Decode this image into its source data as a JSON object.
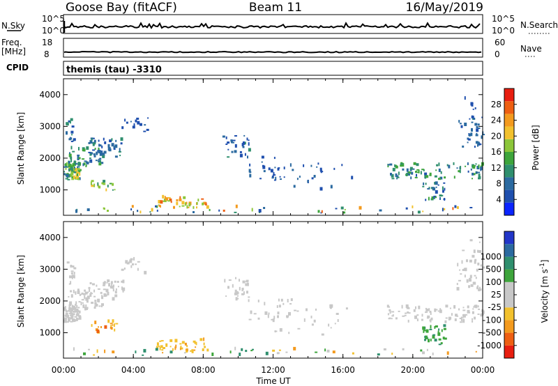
{
  "header": {
    "station": "Goose Bay (fitACF)",
    "beam": "Beam 11",
    "date": "16/May/2019"
  },
  "nsky_panel": {
    "left_label": "N.Sky",
    "left_top_tick": "10^5",
    "left_bottom_tick": "10^0",
    "right_label": "N.Search",
    "right_top_tick": "10^5",
    "right_bottom_tick": "10^0"
  },
  "freq_panel": {
    "left_label_1": "Freq.",
    "left_label_2": "[MHz]",
    "left_top_tick": "18",
    "left_bottom_tick": "8",
    "right_label": "Nave",
    "right_top_tick": "60",
    "right_bottom_tick": "0"
  },
  "cpid_panel": {
    "label": "CPID",
    "program": "themis (tau) -3310"
  },
  "colors": {
    "background": "#ffffff",
    "power_scale": [
      "#0a24ff",
      "#1f4fae",
      "#2b6aa0",
      "#2f8f6e",
      "#3ea53c",
      "#8cc63a",
      "#f2c12e",
      "#f39a1e",
      "#ee5f12",
      "#e81e10"
    ],
    "velocity_scale": [
      "#e81e10",
      "#ee5f12",
      "#f39a1e",
      "#f2c12e",
      "#c8c8c8",
      "#c8c8c8",
      "#3ea53c",
      "#2f8f6e",
      "#2b6aa0",
      "#2236c8"
    ]
  },
  "chart_data": [
    {
      "type": "heatmap",
      "xlabel": "Time UT",
      "ylabel": "Slant Range [km]",
      "x_ticks": [
        "00:00",
        "04:00",
        "08:00",
        "12:00",
        "16:00",
        "20:00",
        "00:00"
      ],
      "xlim": [
        0,
        24
      ],
      "y_ticks": [
        1000,
        2000,
        3000,
        4000
      ],
      "ylim": [
        200,
        4500
      ],
      "colorbar": {
        "label": "Power [dB]",
        "ticks": [
          4,
          8,
          12,
          16,
          20,
          24,
          28
        ],
        "range": [
          0,
          32
        ]
      },
      "scatter_regions": [
        {
          "t": [
            0.0,
            0.9
          ],
          "r": [
            1300,
            1800
          ],
          "v": [
            8,
            20
          ],
          "n": 70
        },
        {
          "t": [
            0.2,
            2.2
          ],
          "r": [
            1700,
            2300
          ],
          "v": [
            6,
            14
          ],
          "n": 55
        },
        {
          "t": [
            1.4,
            3.4
          ],
          "r": [
            2000,
            2600
          ],
          "v": [
            4,
            12
          ],
          "n": 40
        },
        {
          "t": [
            0.1,
            0.6
          ],
          "r": [
            2500,
            3200
          ],
          "v": [
            4,
            12
          ],
          "n": 15
        },
        {
          "t": [
            3.3,
            4.8
          ],
          "r": [
            2800,
            3300
          ],
          "v": [
            4,
            8
          ],
          "n": 14
        },
        {
          "t": [
            1.5,
            3.0
          ],
          "r": [
            950,
            1250
          ],
          "v": [
            10,
            20
          ],
          "n": 18
        },
        {
          "t": [
            5.3,
            8.2
          ],
          "r": [
            400,
            750
          ],
          "v": [
            16,
            28
          ],
          "n": 40
        },
        {
          "t": [
            9.1,
            10.6
          ],
          "r": [
            1950,
            2700
          ],
          "v": [
            4,
            10
          ],
          "n": 28
        },
        {
          "t": [
            10.5,
            13.2
          ],
          "r": [
            1300,
            2000
          ],
          "v": [
            4,
            8
          ],
          "n": 24
        },
        {
          "t": [
            12.0,
            16.5
          ],
          "r": [
            900,
            1800
          ],
          "v": [
            4,
            8
          ],
          "n": 24
        },
        {
          "t": [
            18.5,
            24.0
          ],
          "r": [
            1300,
            1800
          ],
          "v": [
            6,
            16
          ],
          "n": 90
        },
        {
          "t": [
            20.5,
            21.8
          ],
          "r": [
            600,
            1200
          ],
          "v": [
            4,
            14
          ],
          "n": 30
        },
        {
          "t": [
            22.5,
            24.0
          ],
          "r": [
            2300,
            3400
          ],
          "v": [
            4,
            10
          ],
          "n": 35
        },
        {
          "t": [
            22.8,
            23.8
          ],
          "r": [
            3500,
            3900
          ],
          "v": [
            4,
            6
          ],
          "n": 6
        },
        {
          "t": [
            0.0,
            24.0
          ],
          "r": [
            250,
            450
          ],
          "v": [
            4,
            28
          ],
          "n": 45
        }
      ]
    },
    {
      "type": "heatmap",
      "xlabel": "Time UT",
      "ylabel": "Slant Range [km]",
      "x_ticks": [
        "00:00",
        "04:00",
        "08:00",
        "12:00",
        "16:00",
        "20:00",
        "00:00"
      ],
      "xlim": [
        0,
        24
      ],
      "y_ticks": [
        1000,
        2000,
        3000,
        4000
      ],
      "ylim": [
        200,
        4500
      ],
      "colorbar": {
        "label": "Velocity [m s^-1]",
        "ticks": [
          "-1000",
          "-500",
          "-100",
          "-25",
          "25",
          "100",
          "500",
          "1000"
        ],
        "range": [
          0,
          10
        ]
      },
      "scatter_regions": [
        {
          "t": [
            0.0,
            0.9
          ],
          "r": [
            1300,
            1800
          ],
          "v": [
            4.2,
            5.8
          ],
          "n": 70
        },
        {
          "t": [
            0.2,
            2.2
          ],
          "r": [
            1700,
            2300
          ],
          "v": [
            4.2,
            5.8
          ],
          "n": 55
        },
        {
          "t": [
            1.4,
            3.4
          ],
          "r": [
            2000,
            2600
          ],
          "v": [
            4.2,
            5.8
          ],
          "n": 40
        },
        {
          "t": [
            0.1,
            0.6
          ],
          "r": [
            2500,
            3200
          ],
          "v": [
            4.2,
            5.8
          ],
          "n": 15
        },
        {
          "t": [
            3.3,
            4.8
          ],
          "r": [
            2800,
            3300
          ],
          "v": [
            4.2,
            5.8
          ],
          "n": 14
        },
        {
          "t": [
            1.5,
            3.0
          ],
          "r": [
            950,
            1400
          ],
          "v": [
            1.5,
            3.9
          ],
          "n": 18
        },
        {
          "t": [
            5.3,
            8.2
          ],
          "r": [
            400,
            750
          ],
          "v": [
            2.5,
            3.9
          ],
          "n": 40
        },
        {
          "t": [
            9.1,
            10.6
          ],
          "r": [
            1950,
            2700
          ],
          "v": [
            4.2,
            5.8
          ],
          "n": 28
        },
        {
          "t": [
            10.5,
            13.2
          ],
          "r": [
            1300,
            2000
          ],
          "v": [
            4.2,
            5.8
          ],
          "n": 24
        },
        {
          "t": [
            12.0,
            16.5
          ],
          "r": [
            900,
            1800
          ],
          "v": [
            4.2,
            5.8
          ],
          "n": 24
        },
        {
          "t": [
            18.5,
            24.0
          ],
          "r": [
            1300,
            1800
          ],
          "v": [
            4.2,
            5.8
          ],
          "n": 90
        },
        {
          "t": [
            20.5,
            21.8
          ],
          "r": [
            600,
            1200
          ],
          "v": [
            6.1,
            7.6
          ],
          "n": 30
        },
        {
          "t": [
            22.5,
            24.0
          ],
          "r": [
            2300,
            3400
          ],
          "v": [
            4.2,
            5.8
          ],
          "n": 35
        },
        {
          "t": [
            22.8,
            23.8
          ],
          "r": [
            3500,
            3900
          ],
          "v": [
            4.2,
            5.8
          ],
          "n": 6
        },
        {
          "t": [
            0.0,
            24.0
          ],
          "r": [
            250,
            450
          ],
          "v": [
            2.0,
            8.0
          ],
          "n": 45
        }
      ]
    }
  ]
}
